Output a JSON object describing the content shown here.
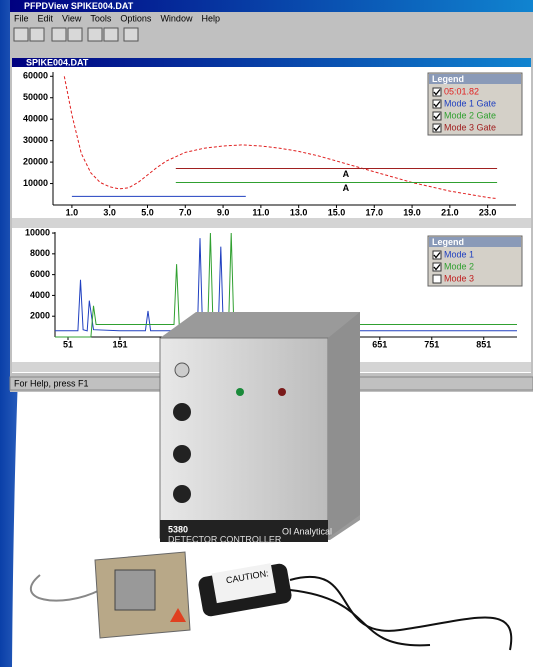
{
  "window": {
    "title": "PFPDView  SPIKE004.DAT",
    "menu": [
      "File",
      "Edit",
      "View",
      "Tools",
      "Options",
      "Window",
      "Help"
    ],
    "document_title": "SPIKE004.DAT",
    "status": "For Help, press F1"
  },
  "chart_data": [
    {
      "type": "line",
      "legend_title": "Legend",
      "xlim": [
        0,
        24.5
      ],
      "ylim": [
        0,
        62000
      ],
      "xticks": [
        {
          "value": 1,
          "label": "1.0"
        },
        {
          "value": 3,
          "label": "3.0"
        },
        {
          "value": 5,
          "label": "5.0"
        },
        {
          "value": 7,
          "label": "7.0"
        },
        {
          "value": 9,
          "label": "9.0"
        },
        {
          "value": 11,
          "label": "11.0"
        },
        {
          "value": 13,
          "label": "13.0"
        },
        {
          "value": 15,
          "label": "15.0"
        },
        {
          "value": 17,
          "label": "17.0"
        },
        {
          "value": 19,
          "label": "19.0"
        },
        {
          "value": 21,
          "label": "21.0"
        },
        {
          "value": 23,
          "label": "23.0"
        }
      ],
      "yticks": [
        10000,
        20000,
        30000,
        40000,
        50000,
        60000
      ],
      "series": [
        {
          "name": "05:01.82",
          "color": "#e02020",
          "dashed": true,
          "checked": true,
          "x": [
            0.6,
            1.0,
            1.5,
            2.0,
            2.5,
            3.0,
            3.5,
            4.0,
            4.5,
            5.0,
            5.5,
            6.0,
            7.0,
            8.0,
            9.0,
            10.0,
            11.0,
            12.0,
            13.0,
            14.0,
            15.0,
            16.0,
            17.0,
            18.0,
            19.0,
            20.0,
            21.0,
            22.0,
            23.0,
            23.5
          ],
          "values": [
            60000,
            42000,
            24000,
            15000,
            10500,
            8500,
            7500,
            8000,
            10500,
            14000,
            17500,
            20500,
            24500,
            26500,
            27500,
            28000,
            27500,
            26500,
            25000,
            23000,
            20500,
            18000,
            15500,
            13000,
            10500,
            8500,
            6500,
            5000,
            3500,
            3000
          ]
        },
        {
          "name": "Mode 1 Gate",
          "color": "#2040c0",
          "dashed": false,
          "checked": true,
          "x": [
            1.0,
            10.2
          ],
          "values": [
            4000,
            4000
          ]
        },
        {
          "name": "Mode 2 Gate",
          "color": "#30a030",
          "dashed": false,
          "checked": true,
          "x": [
            6.5,
            23.5
          ],
          "values": [
            10500,
            10500
          ]
        },
        {
          "name": "Mode 3 Gate",
          "color": "#a02020",
          "dashed": false,
          "checked": true,
          "x": [
            6.5,
            23.5
          ],
          "values": [
            17000,
            17000
          ]
        }
      ],
      "annotations": [
        {
          "text": "A",
          "x": 15.5,
          "y": 14200
        },
        {
          "text": "A",
          "x": 15.5,
          "y": 7700
        }
      ]
    },
    {
      "type": "line",
      "legend_title": "Legend",
      "xlim": [
        26,
        915
      ],
      "ylim": [
        0,
        10100
      ],
      "xticks": [
        51,
        151,
        651,
        751,
        851
      ],
      "yticks": [
        2000,
        4000,
        6000,
        8000,
        10000
      ],
      "series": [
        {
          "name": "Mode 1",
          "color": "#2040c0",
          "dashed": false,
          "checked": true,
          "x": [
            26,
            70,
            75,
            80,
            88,
            92,
            100,
            150,
            200,
            205,
            210,
            300,
            305,
            310,
            340,
            345,
            350,
            500,
            600,
            605,
            610,
            700,
            915
          ],
          "values": [
            600,
            600,
            5500,
            700,
            600,
            3500,
            700,
            600,
            600,
            2500,
            600,
            600,
            9500,
            600,
            600,
            8700,
            600,
            600,
            600,
            1200,
            600,
            600,
            600
          ]
        },
        {
          "name": "Mode 2",
          "color": "#30a030",
          "dashed": false,
          "checked": true,
          "x": [
            26,
            95,
            100,
            105,
            200,
            255,
            260,
            265,
            300,
            320,
            325,
            330,
            360,
            365,
            370,
            915
          ],
          "values": [
            0,
            0,
            3000,
            1200,
            1200,
            1200,
            7000,
            1200,
            1200,
            1200,
            10000,
            1200,
            1200,
            10000,
            1200,
            1200
          ]
        },
        {
          "name": "Mode 3",
          "color": "#c02020",
          "dashed": false,
          "checked": false,
          "x": [],
          "values": []
        }
      ]
    }
  ],
  "device": {
    "model": "5380",
    "label": "DETECTOR CONTROLLER",
    "brand": "OI Analytical",
    "caution": "CAUTION:"
  }
}
